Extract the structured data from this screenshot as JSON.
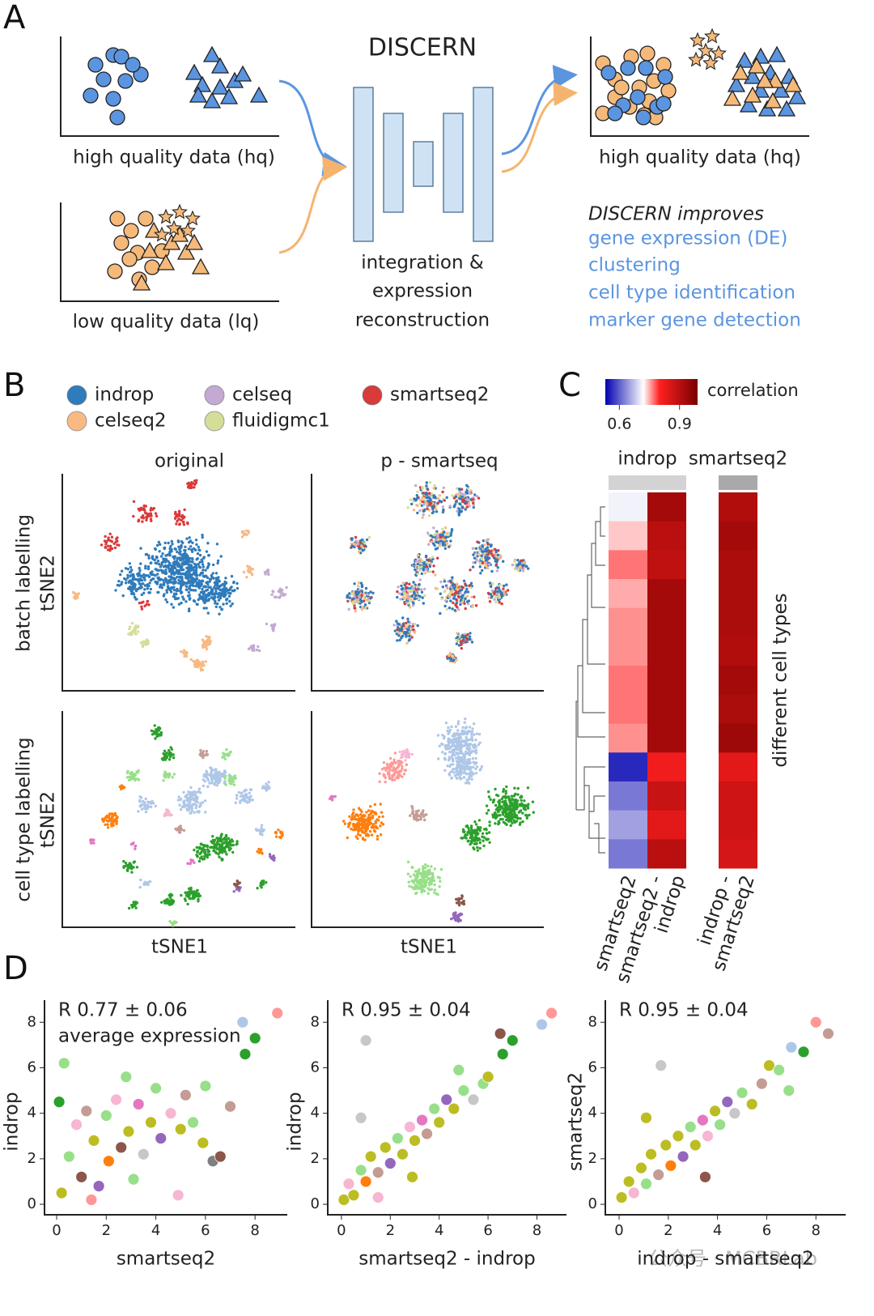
{
  "panel_labels": [
    "A",
    "B",
    "C",
    "D"
  ],
  "panel_a": {
    "hq_label": "high quality data (hq)",
    "lq_label": "low quality data (lq)",
    "model": "DISCERN",
    "model_caption": [
      "integration &",
      "expression",
      "reconstruction"
    ],
    "output_label": "high quality data (hq)",
    "improves_title": "DISCERN improves",
    "improves": [
      "gene expression (DE)",
      "clustering",
      "cell type identification",
      "marker gene detection"
    ]
  },
  "panel_b": {
    "legend": [
      {
        "name": "indrop",
        "color": "#2f7bbb"
      },
      {
        "name": "celseq2",
        "color": "#f9b983"
      },
      {
        "name": "celseq",
        "color": "#c4a9d3"
      },
      {
        "name": "fluidigmc1",
        "color": "#d5dd98"
      },
      {
        "name": "smartseq2",
        "color": "#d93a3a"
      }
    ],
    "columns": [
      "original",
      "p - smartseq"
    ],
    "rows": [
      [
        "batch labelling",
        "tSNE2"
      ],
      [
        "cell type labelling",
        "tSNE2"
      ]
    ],
    "xlabel": "tSNE1"
  },
  "panel_c": {
    "colorbar_label": "correlation",
    "colorbar_lim": [
      0.53,
      0.99
    ],
    "colorbar_ticks": [
      0.6,
      0.9
    ],
    "colorscale": [
      [
        0.53,
        "#0000b0"
      ],
      [
        0.72,
        "#ffffff"
      ],
      [
        0.8,
        "#ff2020"
      ],
      [
        0.99,
        "#7a0000"
      ]
    ],
    "groups": [
      "indrop",
      "smartseq2"
    ],
    "columns": [
      [
        "smartseq2"
      ],
      [
        "smartseq2 -",
        "indrop"
      ],
      [
        "indrop -",
        "smartseq2"
      ]
    ],
    "row_axis_label": "different cell types",
    "values": [
      [
        0.71,
        0.74,
        0.77,
        0.75,
        0.76,
        0.76,
        0.77,
        0.77,
        0.76,
        0.56,
        0.62,
        0.65,
        0.62
      ],
      [
        0.93,
        0.9,
        0.89,
        0.93,
        0.93,
        0.93,
        0.93,
        0.93,
        0.93,
        0.82,
        0.88,
        0.84,
        0.9
      ],
      [
        0.91,
        0.93,
        0.92,
        0.92,
        0.92,
        0.91,
        0.93,
        0.92,
        0.94,
        0.84,
        0.87,
        0.87,
        0.86
      ]
    ]
  },
  "panel_d": [
    {
      "type": "scatter",
      "annotation": [
        "R 0.77 ± 0.06",
        "average expression"
      ],
      "xlabel": "smartseq2",
      "ylabel": "indrop",
      "xlim": [
        -0.49,
        9.3
      ],
      "ylim": [
        -0.46,
        8.97
      ],
      "xticks": [
        0,
        2,
        4,
        6,
        8
      ],
      "yticks": [
        0,
        2,
        4,
        6,
        8
      ],
      "points": [
        [
          0.2,
          0.5,
          "#bcbd22"
        ],
        [
          0.5,
          2.1,
          "#98df8a"
        ],
        [
          0.8,
          3.5,
          "#f7b6d2"
        ],
        [
          1.0,
          1.2,
          "#8c564b"
        ],
        [
          1.2,
          4.1,
          "#c49c94"
        ],
        [
          1.5,
          2.8,
          "#bcbd22"
        ],
        [
          1.7,
          0.8,
          "#9467bd"
        ],
        [
          2.0,
          3.9,
          "#98df8a"
        ],
        [
          2.1,
          1.9,
          "#ff7f0e"
        ],
        [
          2.4,
          4.6,
          "#f7b6d2"
        ],
        [
          2.6,
          2.5,
          "#8c564b"
        ],
        [
          2.9,
          3.2,
          "#bcbd22"
        ],
        [
          3.1,
          1.1,
          "#98df8a"
        ],
        [
          3.3,
          4.4,
          "#e377c2"
        ],
        [
          3.5,
          2.2,
          "#c7c7c7"
        ],
        [
          3.8,
          3.6,
          "#bcbd22"
        ],
        [
          4.0,
          5.1,
          "#98df8a"
        ],
        [
          4.2,
          2.9,
          "#9467bd"
        ],
        [
          4.6,
          4.0,
          "#f7b6d2"
        ],
        [
          5.0,
          3.3,
          "#bcbd22"
        ],
        [
          5.2,
          4.8,
          "#c49c94"
        ],
        [
          5.5,
          3.6,
          "#98df8a"
        ],
        [
          5.9,
          2.7,
          "#bcbd22"
        ],
        [
          6.3,
          1.9,
          "#7f7f7f"
        ],
        [
          6.6,
          2.1,
          "#8c564b"
        ],
        [
          7.0,
          4.3,
          "#c49c94"
        ],
        [
          0.3,
          6.2,
          "#98df8a"
        ],
        [
          0.1,
          4.5,
          "#2ca02c"
        ],
        [
          1.4,
          0.2,
          "#ff9896"
        ],
        [
          4.9,
          0.4,
          "#f7b6d2"
        ],
        [
          6.0,
          5.2,
          "#98df8a"
        ],
        [
          2.8,
          5.6,
          "#98df8a"
        ],
        [
          7.5,
          8.0,
          "#aec7e8"
        ],
        [
          8.0,
          7.3,
          "#2ca02c"
        ],
        [
          7.6,
          6.6,
          "#2ca02c"
        ],
        [
          8.9,
          8.4,
          "#ff9896"
        ]
      ]
    },
    {
      "type": "scatter",
      "annotation": [
        "R 0.95 ± 0.04"
      ],
      "xlabel": "smartseq2 - indrop",
      "ylabel": "indrop",
      "xlim": [
        -0.56,
        9.21
      ],
      "ylim": [
        -0.46,
        8.97
      ],
      "xticks": [
        0,
        2,
        4,
        6,
        8
      ],
      "yticks": [
        0,
        2,
        4,
        6,
        8
      ],
      "points": [
        [
          0.1,
          0.2,
          "#bcbd22"
        ],
        [
          0.3,
          0.9,
          "#f7b6d2"
        ],
        [
          0.5,
          0.4,
          "#bcbd22"
        ],
        [
          0.8,
          1.5,
          "#98df8a"
        ],
        [
          1.0,
          1.0,
          "#ff7f0e"
        ],
        [
          1.2,
          2.1,
          "#bcbd22"
        ],
        [
          1.5,
          1.4,
          "#c49c94"
        ],
        [
          1.8,
          2.5,
          "#bcbd22"
        ],
        [
          2.0,
          1.8,
          "#9467bd"
        ],
        [
          2.3,
          2.9,
          "#98df8a"
        ],
        [
          2.5,
          2.2,
          "#bcbd22"
        ],
        [
          2.8,
          3.4,
          "#f7b6d2"
        ],
        [
          3.0,
          2.8,
          "#bcbd22"
        ],
        [
          3.3,
          3.7,
          "#e377c2"
        ],
        [
          3.5,
          3.1,
          "#c49c94"
        ],
        [
          3.8,
          4.2,
          "#98df8a"
        ],
        [
          4.0,
          3.6,
          "#bcbd22"
        ],
        [
          4.3,
          4.6,
          "#9467bd"
        ],
        [
          4.6,
          4.2,
          "#bcbd22"
        ],
        [
          5.0,
          5.0,
          "#98df8a"
        ],
        [
          5.4,
          4.6,
          "#c7c7c7"
        ],
        [
          5.8,
          5.3,
          "#98df8a"
        ],
        [
          6.0,
          5.6,
          "#bcbd22"
        ],
        [
          6.6,
          6.6,
          "#2ca02c"
        ],
        [
          7.0,
          7.2,
          "#2ca02c"
        ],
        [
          6.5,
          7.5,
          "#8c564b"
        ],
        [
          8.2,
          7.9,
          "#aec7e8"
        ],
        [
          8.6,
          8.4,
          "#ff9896"
        ],
        [
          1.0,
          7.2,
          "#c7c7c7"
        ],
        [
          0.8,
          3.8,
          "#c7c7c7"
        ],
        [
          2.9,
          1.2,
          "#bcbd22"
        ],
        [
          1.5,
          0.3,
          "#f7b6d2"
        ],
        [
          4.8,
          5.9,
          "#98df8a"
        ]
      ]
    },
    {
      "type": "scatter",
      "annotation": [
        "R 0.95 ± 0.04"
      ],
      "xlabel": "indrop - smartseq2",
      "ylabel": "smartseq2",
      "xlim": [
        -0.56,
        9.21
      ],
      "ylim": [
        -0.46,
        8.97
      ],
      "xticks": [
        0,
        2,
        4,
        6,
        8
      ],
      "yticks": [
        0,
        2,
        4,
        6,
        8
      ],
      "points": [
        [
          0.1,
          0.3,
          "#bcbd22"
        ],
        [
          0.4,
          1.0,
          "#bcbd22"
        ],
        [
          0.6,
          0.5,
          "#f7b6d2"
        ],
        [
          0.9,
          1.6,
          "#bcbd22"
        ],
        [
          1.1,
          0.9,
          "#98df8a"
        ],
        [
          1.3,
          2.2,
          "#bcbd22"
        ],
        [
          1.6,
          1.3,
          "#c49c94"
        ],
        [
          1.9,
          2.6,
          "#bcbd22"
        ],
        [
          2.1,
          1.7,
          "#ff7f0e"
        ],
        [
          2.4,
          3.0,
          "#bcbd22"
        ],
        [
          2.6,
          2.1,
          "#9467bd"
        ],
        [
          2.9,
          3.4,
          "#98df8a"
        ],
        [
          3.1,
          2.6,
          "#bcbd22"
        ],
        [
          3.4,
          3.7,
          "#e377c2"
        ],
        [
          3.6,
          3.0,
          "#f7b6d2"
        ],
        [
          3.9,
          4.1,
          "#bcbd22"
        ],
        [
          4.1,
          3.5,
          "#98df8a"
        ],
        [
          4.4,
          4.5,
          "#9467bd"
        ],
        [
          4.7,
          4.0,
          "#c7c7c7"
        ],
        [
          5.0,
          4.9,
          "#98df8a"
        ],
        [
          5.4,
          4.4,
          "#bcbd22"
        ],
        [
          5.8,
          5.3,
          "#c49c94"
        ],
        [
          6.1,
          6.1,
          "#bcbd22"
        ],
        [
          6.5,
          5.9,
          "#98df8a"
        ],
        [
          7.0,
          6.9,
          "#aec7e8"
        ],
        [
          7.5,
          6.7,
          "#2ca02c"
        ],
        [
          8.0,
          8.0,
          "#ff9896"
        ],
        [
          8.5,
          7.5,
          "#c49c94"
        ],
        [
          1.7,
          6.1,
          "#c7c7c7"
        ],
        [
          3.5,
          1.2,
          "#8c564b"
        ],
        [
          6.9,
          5.0,
          "#98df8a"
        ],
        [
          1.1,
          3.8,
          "#bcbd22"
        ]
      ]
    }
  ],
  "watermark": "公众号 · MCBRLab"
}
